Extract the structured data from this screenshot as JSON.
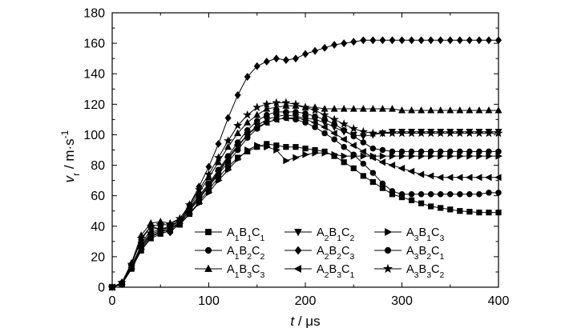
{
  "chart_data": {
    "type": "line",
    "title": "",
    "xlabel": {
      "var": "t",
      "unit": "μs"
    },
    "ylabel": {
      "var": "v",
      "sub": "r",
      "unit": "m·s",
      "exp": "-1"
    },
    "xlim": [
      0,
      400
    ],
    "ylim": [
      0,
      180
    ],
    "xticks": [
      0,
      100,
      200,
      300,
      400
    ],
    "yticks": [
      0,
      20,
      40,
      60,
      80,
      100,
      120,
      140,
      160,
      180
    ],
    "grid": false,
    "legend_placement": "bottom-center",
    "x": [
      0,
      10,
      20,
      30,
      40,
      50,
      60,
      70,
      80,
      90,
      100,
      110,
      120,
      130,
      140,
      150,
      160,
      170,
      180,
      190,
      200,
      210,
      220,
      230,
      240,
      250,
      260,
      270,
      280,
      290,
      300,
      310,
      320,
      330,
      340,
      350,
      360,
      370,
      380,
      390,
      400
    ],
    "series": [
      {
        "name": "A1B1C1",
        "label": [
          [
            "A",
            "1"
          ],
          [
            "B",
            "1"
          ],
          [
            "C",
            "1"
          ]
        ],
        "marker": "square",
        "values": [
          0,
          2,
          12,
          24,
          32,
          35,
          37,
          41,
          48,
          56,
          64,
          72,
          79,
          85,
          89,
          92,
          94,
          93,
          92,
          92,
          91,
          90,
          89,
          86,
          82,
          78,
          73,
          69,
          65,
          61,
          59,
          57,
          55,
          53,
          52,
          51,
          50,
          49.5,
          49,
          49,
          49
        ]
      },
      {
        "name": "A2B1C2",
        "label": [
          [
            "A",
            "2"
          ],
          [
            "B",
            "1"
          ],
          [
            "C",
            "2"
          ]
        ],
        "marker": "triangle-down",
        "values": [
          0,
          2,
          13,
          28,
          38,
          39,
          38,
          42,
          50,
          58,
          66,
          75,
          84,
          92,
          100,
          106,
          110,
          112,
          113,
          112,
          111,
          110,
          108,
          105,
          102,
          100,
          99,
          100,
          101,
          102,
          102,
          102,
          102,
          102,
          102,
          102,
          102,
          102,
          102,
          102,
          102
        ]
      },
      {
        "name": "A3B1C3",
        "label": [
          [
            "A",
            "3"
          ],
          [
            "B",
            "1"
          ],
          [
            "C",
            "3"
          ]
        ],
        "marker": "triangle-right",
        "values": [
          0,
          2,
          12,
          25,
          33,
          36,
          38,
          42,
          48,
          55,
          62,
          70,
          77,
          84,
          90,
          93,
          92,
          90,
          83,
          85,
          87,
          88,
          88,
          87,
          86,
          86,
          86,
          86,
          86,
          86,
          86,
          86,
          86,
          86,
          86,
          86,
          86,
          86,
          86,
          86,
          86
        ]
      },
      {
        "name": "A1B2C2",
        "label": [
          [
            "A",
            "1"
          ],
          [
            "B",
            "2"
          ],
          [
            "C",
            "2"
          ]
        ],
        "marker": "circle",
        "values": [
          0,
          2,
          14,
          27,
          35,
          37,
          39,
          44,
          52,
          60,
          68,
          77,
          86,
          95,
          103,
          109,
          113,
          115,
          115,
          115,
          114,
          112,
          110,
          107,
          103,
          99,
          95,
          91,
          90,
          89,
          89,
          89,
          89,
          89,
          89,
          89,
          89,
          89,
          89,
          89,
          89
        ]
      },
      {
        "name": "A2B2C3",
        "label": [
          [
            "A",
            "2"
          ],
          [
            "B",
            "2"
          ],
          [
            "C",
            "3"
          ]
        ],
        "marker": "diamond",
        "values": [
          0,
          3,
          15,
          31,
          40,
          38,
          36,
          42,
          54,
          66,
          79,
          94,
          111,
          126,
          138,
          145,
          148,
          150,
          149,
          150,
          153,
          155,
          157,
          159,
          160,
          161,
          162,
          162,
          162,
          162,
          162,
          162,
          162,
          162,
          162,
          162,
          162,
          162,
          162,
          162,
          162
        ]
      },
      {
        "name": "A3B2C1",
        "label": [
          [
            "A",
            "3"
          ],
          [
            "B",
            "2"
          ],
          [
            "C",
            "1"
          ]
        ],
        "marker": "circle",
        "values": [
          0,
          2,
          13,
          26,
          34,
          36,
          38,
          43,
          50,
          58,
          66,
          74,
          82,
          90,
          98,
          104,
          108,
          110,
          111,
          110,
          108,
          105,
          101,
          97,
          92,
          87,
          81,
          75,
          68,
          63,
          61,
          61,
          61,
          61,
          61,
          61,
          61,
          61,
          61,
          62,
          62
        ]
      },
      {
        "name": "A1B3C3",
        "label": [
          [
            "A",
            "1"
          ],
          [
            "B",
            "3"
          ],
          [
            "C",
            "3"
          ]
        ],
        "marker": "triangle-up",
        "values": [
          0,
          3,
          16,
          34,
          42,
          43,
          42,
          45,
          53,
          62,
          72,
          82,
          92,
          101,
          108,
          113,
          117,
          118,
          119,
          119,
          118,
          118,
          117,
          117,
          117,
          117,
          117,
          117,
          117,
          117,
          116,
          116,
          116,
          116,
          116,
          116,
          116,
          116,
          116,
          116,
          116
        ]
      },
      {
        "name": "A2B3C1",
        "label": [
          [
            "A",
            "2"
          ],
          [
            "B",
            "3"
          ],
          [
            "C",
            "1"
          ]
        ],
        "marker": "triangle-left",
        "values": [
          0,
          2,
          13,
          27,
          36,
          38,
          40,
          44,
          51,
          59,
          67,
          76,
          85,
          93,
          100,
          105,
          108,
          110,
          111,
          111,
          110,
          108,
          105,
          101,
          97,
          93,
          89,
          85,
          82,
          80,
          78,
          76,
          74,
          73,
          72,
          72,
          72,
          72,
          72,
          72,
          72
        ]
      },
      {
        "name": "A3B3C2",
        "label": [
          [
            "A",
            "3"
          ],
          [
            "B",
            "3"
          ],
          [
            "C",
            "2"
          ]
        ],
        "marker": "star",
        "values": [
          0,
          3,
          15,
          32,
          40,
          41,
          41,
          45,
          54,
          64,
          74,
          85,
          96,
          106,
          113,
          118,
          120,
          121,
          121,
          120,
          118,
          116,
          113,
          110,
          107,
          104,
          102,
          101,
          101,
          101,
          101,
          101,
          101,
          101,
          101,
          101,
          101,
          101,
          101,
          101,
          101
        ]
      }
    ]
  }
}
